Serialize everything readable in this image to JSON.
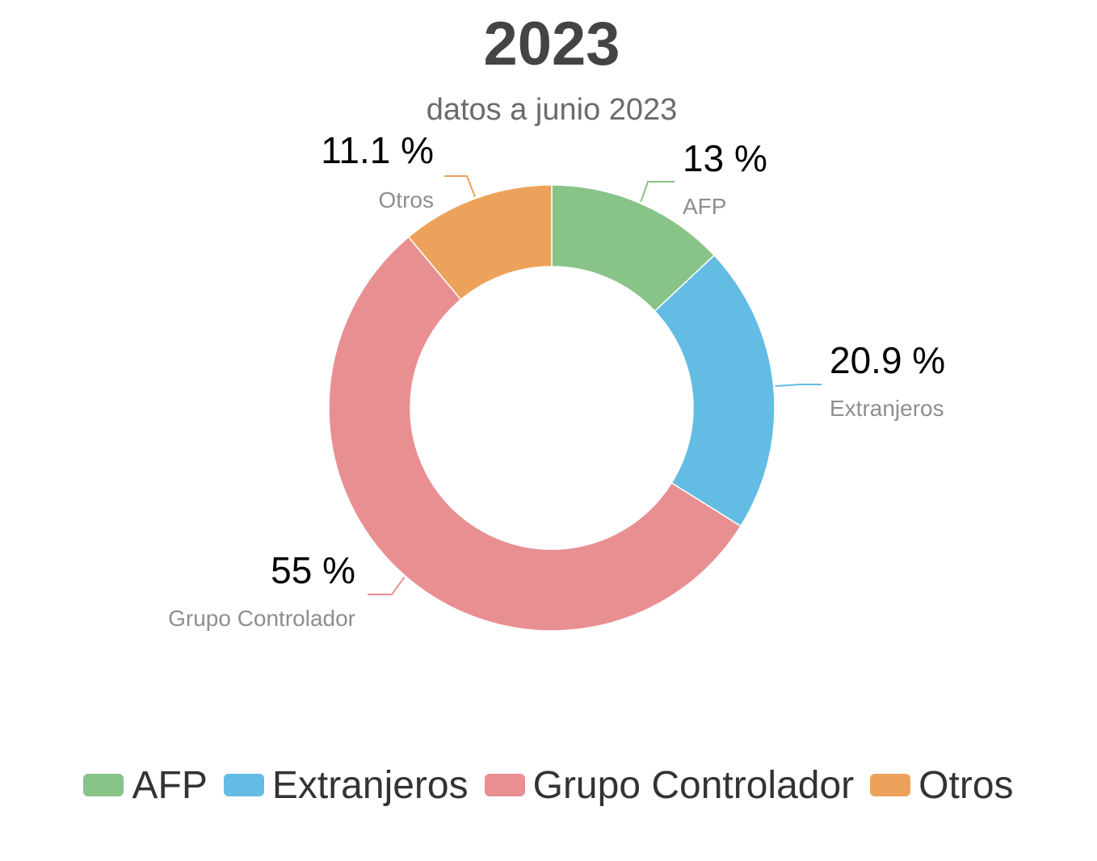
{
  "chart_data": {
    "type": "pie",
    "title": "2023",
    "subtitle": "datos a junio 2023",
    "donut": true,
    "legend_position": "bottom",
    "categories": [
      "AFP",
      "Extranjeros",
      "Grupo Controlador",
      "Otros"
    ],
    "values": [
      13,
      20.9,
      55,
      11.1
    ],
    "value_labels": [
      "13 %",
      "20.9 %",
      "55 %",
      "11.1 %"
    ],
    "colors": [
      "#88c388",
      "#63bce3",
      "#e88f92",
      "#eca25b"
    ]
  }
}
